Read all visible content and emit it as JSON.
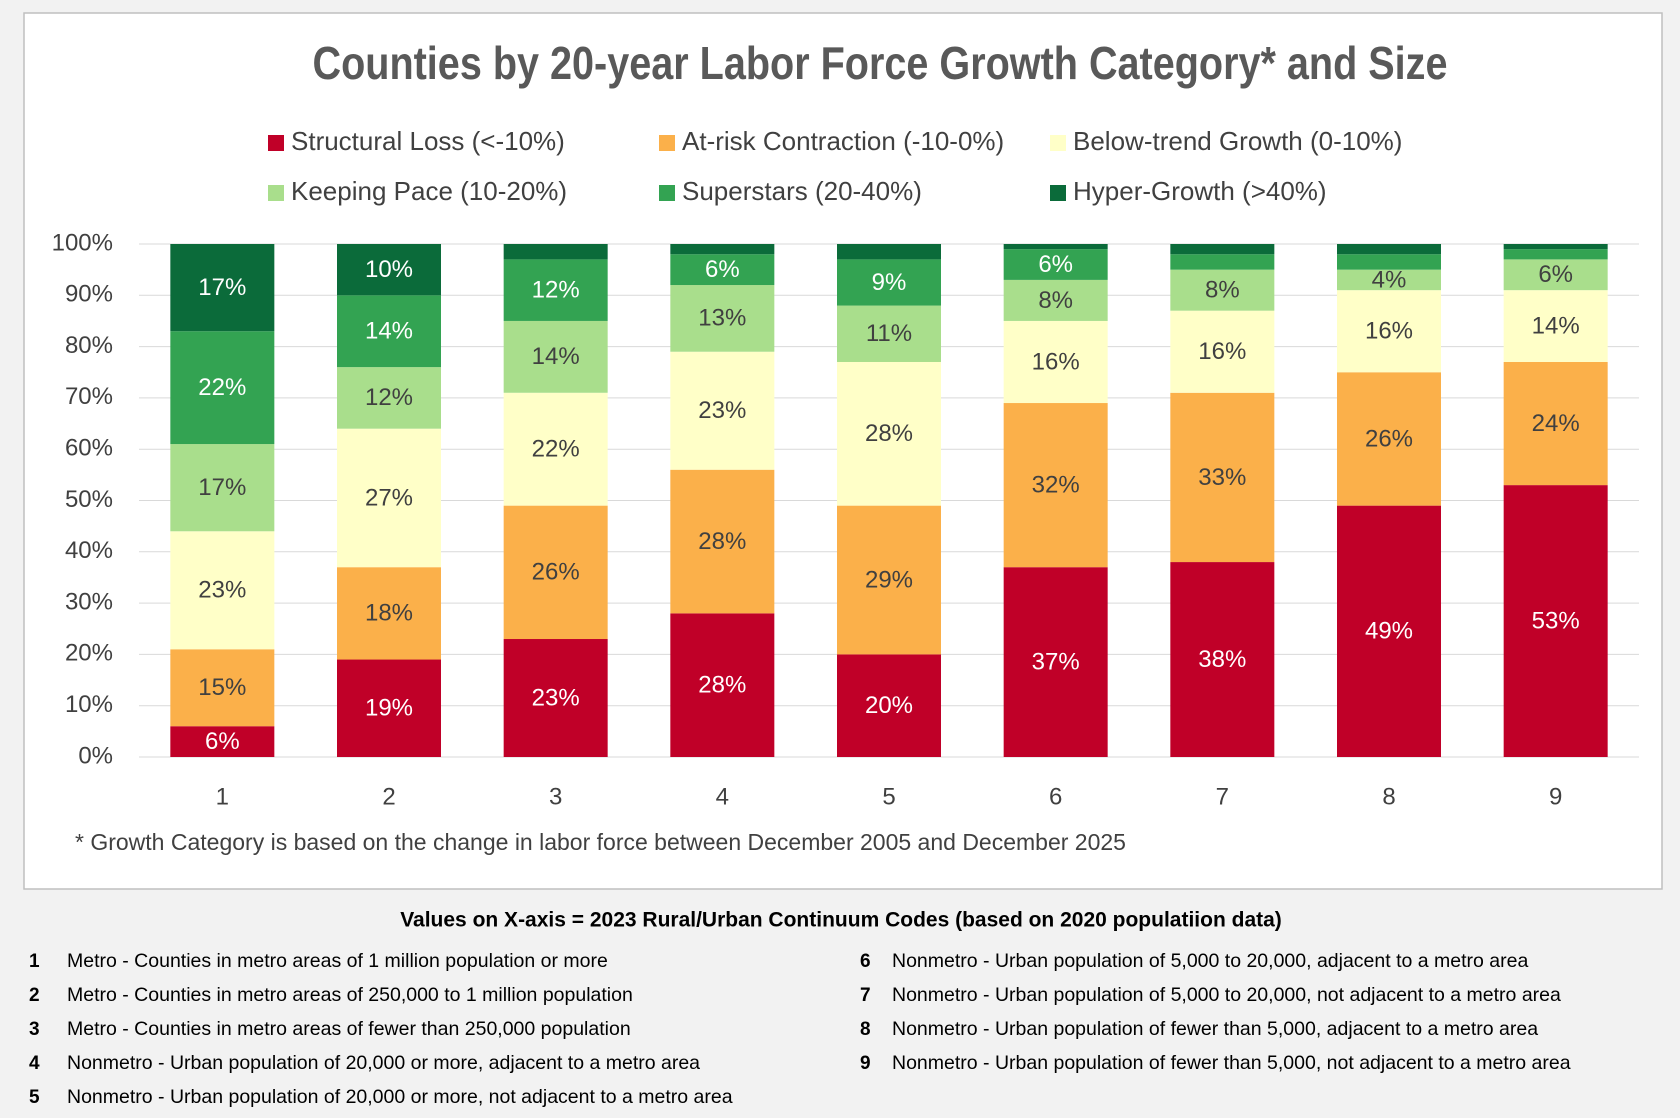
{
  "chart_data": {
    "type": "stacked_bar",
    "title": "Counties by 20-year Labor Force Growth Category* and Size",
    "categories": [
      "1",
      "2",
      "3",
      "4",
      "5",
      "6",
      "7",
      "8",
      "9"
    ],
    "series": [
      {
        "name": "Structural Loss (<-10%)",
        "color": "#c00028",
        "values": [
          6,
          19,
          23,
          28,
          20,
          37,
          38,
          49,
          53
        ],
        "value_labels": [
          "6%",
          "19%",
          "23%",
          "28%",
          "20%",
          "37%",
          "38%",
          "49%",
          "53%"
        ]
      },
      {
        "name": "At-risk Contraction (-10-0%)",
        "color": "#fbb04a",
        "values": [
          15,
          18,
          26,
          28,
          29,
          32,
          33,
          26,
          24
        ],
        "value_labels": [
          "15%",
          "18%",
          "26%",
          "28%",
          "29%",
          "32%",
          "33%",
          "26%",
          "24%"
        ]
      },
      {
        "name": "Below-trend Growth (0-10%)",
        "color": "#ffffc8",
        "values": [
          23,
          27,
          22,
          23,
          28,
          16,
          16,
          16,
          14
        ],
        "value_labels": [
          "23%",
          "27%",
          "22%",
          "23%",
          "28%",
          "16%",
          "16%",
          "16%",
          "14%"
        ]
      },
      {
        "name": "Keeping Pace (10-20%)",
        "color": "#a9de8c",
        "values": [
          17,
          12,
          14,
          13,
          11,
          8,
          8,
          4,
          6
        ],
        "value_labels": [
          "17%",
          "12%",
          "14%",
          "13%",
          "11%",
          "8%",
          "8%",
          "4%",
          "6%"
        ]
      },
      {
        "name": "Superstars (20-40%)",
        "color": "#33a352",
        "values": [
          22,
          14,
          12,
          6,
          9,
          6,
          3,
          3,
          2
        ],
        "value_labels": [
          "22%",
          "14%",
          "12%",
          "6%",
          "9%",
          "6%",
          null,
          null,
          null
        ]
      },
      {
        "name": "Hyper-Growth (>40%)",
        "color": "#0b6b3a",
        "values": [
          17,
          10,
          3,
          2,
          3,
          1,
          2,
          2,
          1
        ],
        "value_labels": [
          "17%",
          "10%",
          null,
          null,
          null,
          null,
          null,
          null,
          null
        ]
      }
    ],
    "ylim": [
      0,
      100
    ],
    "yticks": [
      {
        "value": 0,
        "label": "0%"
      },
      {
        "value": 10,
        "label": "10%"
      },
      {
        "value": 20,
        "label": "20%"
      },
      {
        "value": 30,
        "label": "30%"
      },
      {
        "value": 40,
        "label": "40%"
      },
      {
        "value": 50,
        "label": "50%"
      },
      {
        "value": 60,
        "label": "60%"
      },
      {
        "value": 70,
        "label": "70%"
      },
      {
        "value": 80,
        "label": "80%"
      },
      {
        "value": 90,
        "label": "90%"
      },
      {
        "value": 100,
        "label": "100%"
      }
    ],
    "grid": true,
    "legend": "top",
    "footnote": "* Growth Category is based on the change in labor force between December 2005 and December 2025"
  },
  "code_table": {
    "title": "Values on X-axis = 2023 Rural/Urban Continuum Codes  (based on 2020 populatiion data)",
    "rows": [
      {
        "code": "1",
        "description": "Metro - Counties in metro areas of 1 million population or more"
      },
      {
        "code": "2",
        "description": "Metro - Counties in metro areas of 250,000 to 1 million population"
      },
      {
        "code": "3",
        "description": "Metro - Counties in metro areas of fewer than 250,000 population"
      },
      {
        "code": "4",
        "description": "Nonmetro - Urban population of 20,000 or more, adjacent to a metro area"
      },
      {
        "code": "5",
        "description": "Nonmetro - Urban population of 20,000 or more, not adjacent to a metro area"
      },
      {
        "code": "6",
        "description": "Nonmetro - Urban population of 5,000 to 20,000, adjacent to a metro area"
      },
      {
        "code": "7",
        "description": "Nonmetro - Urban population of 5,000 to 20,000, not adjacent to a metro area"
      },
      {
        "code": "8",
        "description": "Nonmetro - Urban population of fewer than 5,000, adjacent to a metro area"
      },
      {
        "code": "9",
        "description": "Nonmetro - Urban population of fewer than 5,000, not adjacent to a metro area"
      }
    ]
  }
}
